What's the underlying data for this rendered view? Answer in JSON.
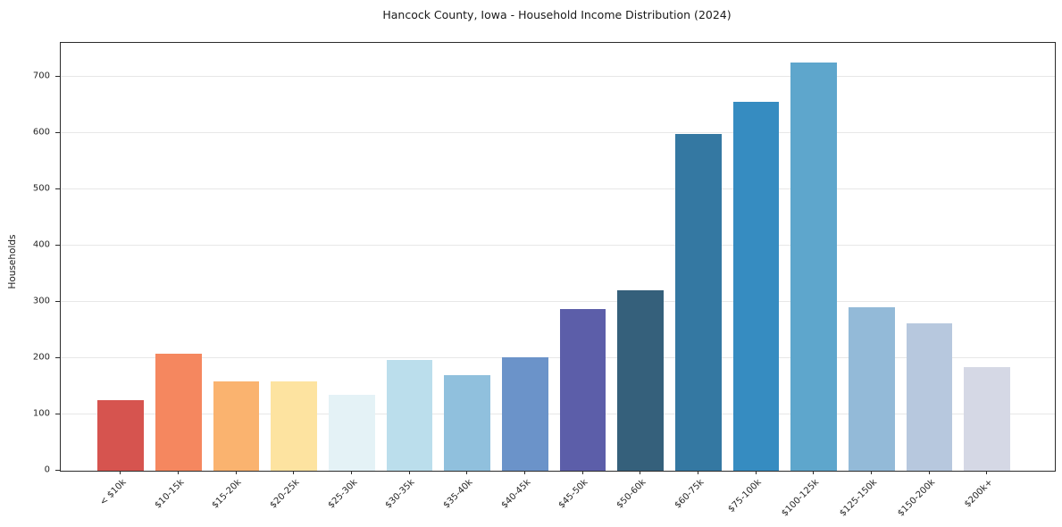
{
  "title": "Hancock County, Iowa - Household Income Distribution (2024)",
  "chart_data": {
    "type": "bar",
    "title": "Hancock County, Iowa - Household Income Distribution (2024)",
    "xlabel": "",
    "ylabel": "Households",
    "ylim": [
      0,
      760
    ],
    "yticks": [
      0,
      100,
      200,
      300,
      400,
      500,
      600,
      700
    ],
    "grid": "horizontal-light-gray",
    "legend": "none",
    "categories": [
      "< $10k",
      "$10-15k",
      "$15-20k",
      "$20-25k",
      "$25-30k",
      "$30-35k",
      "$35-40k",
      "$40-45k",
      "$45-50k",
      "$50-60k",
      "$60-75k",
      "$75-100k",
      "$100-125k",
      "$125-150k",
      "$150-200k",
      "$200k+"
    ],
    "values": [
      125,
      208,
      159,
      159,
      135,
      196,
      170,
      202,
      287,
      321,
      598,
      655,
      725,
      290,
      262,
      184
    ],
    "bar_colors": [
      "#d6544f",
      "#f5875f",
      "#fab36f",
      "#fde3a0",
      "#e4f2f6",
      "#bbdeec",
      "#90c0dd",
      "#6b93c9",
      "#5c5ea9",
      "#35607b",
      "#3478a2",
      "#368cc1",
      "#5ea6cc",
      "#93bad8",
      "#b7c8de",
      "#d5d8e5"
    ],
    "axis_color": "#2b2b2b",
    "gridline_color": "#e7e7e7",
    "background_color": "#ffffff"
  }
}
